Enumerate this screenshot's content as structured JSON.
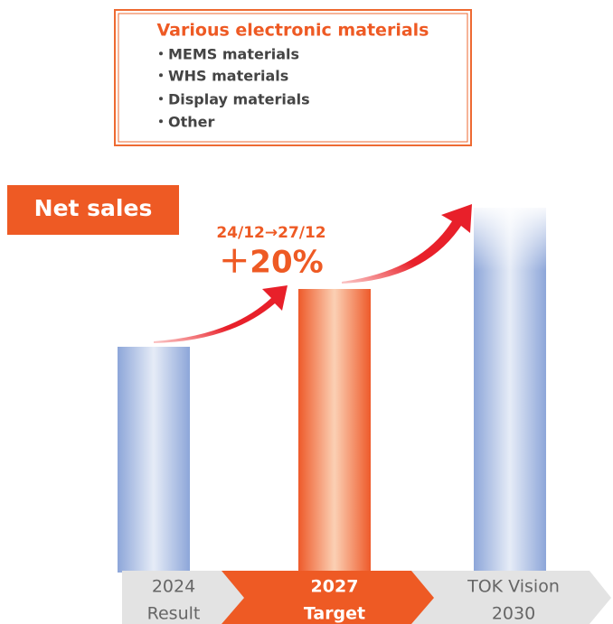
{
  "box": {
    "title": "Various electronic materials",
    "items": [
      "・MEMS materials",
      "・WHS materials",
      "・Display materials",
      "・Other"
    ]
  },
  "label": "Net sales",
  "growth": {
    "period": "24/12→27/12",
    "rate": "＋20%"
  },
  "stages": [
    [
      "2024",
      "Result"
    ],
    [
      "2027",
      "Target"
    ],
    [
      "TOK Vision",
      "2030"
    ]
  ]
}
